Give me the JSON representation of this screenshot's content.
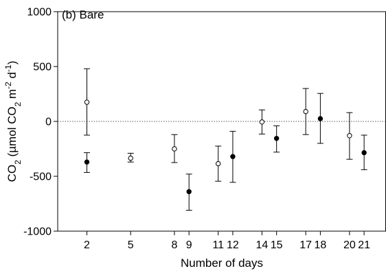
{
  "chart_data": {
    "type": "scatter",
    "panel_label": "(b) Bare",
    "xlabel": "Number of days",
    "ylabel_parts": [
      "CO",
      "2",
      " (µmol CO",
      "2",
      " m",
      "-2",
      " d",
      "-1",
      ")"
    ],
    "ylim": [
      -1000,
      1000
    ],
    "yticks": [
      -1000,
      -500,
      0,
      500,
      1000
    ],
    "ytick_labels": [
      "-1000",
      "-500",
      "0",
      "500",
      "1000"
    ],
    "xlim": [
      0,
      22.5
    ],
    "xticks": [
      2,
      5,
      8,
      9,
      11,
      12,
      14,
      15,
      17,
      18,
      20,
      21
    ],
    "xtick_labels": [
      "2",
      "5",
      "8",
      "9",
      "11",
      "12",
      "14",
      "15",
      "17",
      "18",
      "20",
      "21"
    ],
    "reference_line_y": 0,
    "series": [
      {
        "marker": "open-circle",
        "points": [
          {
            "x": 2,
            "y": 175,
            "lo": -125,
            "hi": 480
          },
          {
            "x": 5,
            "y": -335,
            "lo": -370,
            "hi": -290
          },
          {
            "x": 8,
            "y": -250,
            "lo": -375,
            "hi": -120
          },
          {
            "x": 11,
            "y": -385,
            "lo": -545,
            "hi": -225
          },
          {
            "x": 14,
            "y": -5,
            "lo": -115,
            "hi": 105
          },
          {
            "x": 17,
            "y": 90,
            "lo": -120,
            "hi": 300
          },
          {
            "x": 20,
            "y": -130,
            "lo": -345,
            "hi": 80
          }
        ]
      },
      {
        "marker": "filled-circle",
        "points": [
          {
            "x": 2,
            "y": -370,
            "lo": -465,
            "hi": -285
          },
          {
            "x": 9,
            "y": -640,
            "lo": -810,
            "hi": -480
          },
          {
            "x": 12,
            "y": -320,
            "lo": -555,
            "hi": -90
          },
          {
            "x": 15,
            "y": -155,
            "lo": -280,
            "hi": -40
          },
          {
            "x": 18,
            "y": 25,
            "lo": -200,
            "hi": 255
          },
          {
            "x": 21,
            "y": -285,
            "lo": -440,
            "hi": -125
          }
        ]
      }
    ]
  }
}
